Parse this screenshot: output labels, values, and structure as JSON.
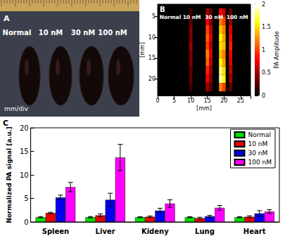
{
  "photo": {
    "title": "A",
    "annotations": [
      "Normal",
      "10 nM",
      "30 nM",
      "100 nM"
    ],
    "note": "mm/div"
  },
  "chart_data": [
    {
      "type": "heatmap",
      "title": "B",
      "annotations": [
        "Normal",
        "10 nM",
        "30 nM",
        "100 nM"
      ],
      "x_label": "[mm]",
      "y_label": "[mm]",
      "xlim": [
        0,
        28
      ],
      "xticks": [
        0,
        5,
        10,
        15,
        20,
        25
      ],
      "ylim": [
        2,
        24
      ],
      "yticks": [
        5,
        10,
        15,
        20
      ],
      "cells": [
        [
          10,
          4,
          0.2
        ],
        [
          10,
          6,
          0.3
        ],
        [
          10,
          8,
          0.4
        ],
        [
          10,
          10,
          0.4
        ],
        [
          10,
          12,
          0.5
        ],
        [
          10,
          14,
          0.4
        ],
        [
          10,
          16,
          0.4
        ],
        [
          10,
          18,
          0.3
        ],
        [
          10,
          20,
          0.3
        ],
        [
          10,
          22,
          0.2
        ],
        [
          15,
          4,
          0.5
        ],
        [
          15,
          6,
          0.8
        ],
        [
          15,
          8,
          1.0
        ],
        [
          15,
          10,
          1.1
        ],
        [
          15,
          12,
          1.0
        ],
        [
          15,
          14,
          1.2
        ],
        [
          15,
          16,
          1.1
        ],
        [
          15,
          18,
          0.9
        ],
        [
          15,
          20,
          0.8
        ],
        [
          15,
          22,
          0.5
        ],
        [
          16,
          4,
          0.3
        ],
        [
          16,
          6,
          0.4
        ],
        [
          16,
          8,
          0.6
        ],
        [
          16,
          10,
          0.7
        ],
        [
          16,
          12,
          0.6
        ],
        [
          16,
          14,
          0.7
        ],
        [
          16,
          16,
          0.6
        ],
        [
          16,
          18,
          0.5
        ],
        [
          16,
          20,
          0.4
        ],
        [
          16,
          22,
          0.3
        ],
        [
          19,
          4,
          0.8
        ],
        [
          19,
          6,
          1.2
        ],
        [
          19,
          8,
          1.4
        ],
        [
          19,
          10,
          1.6
        ],
        [
          19,
          12,
          1.5
        ],
        [
          19,
          14,
          1.4
        ],
        [
          19,
          16,
          1.6
        ],
        [
          19,
          18,
          1.8
        ],
        [
          19,
          20,
          1.9
        ],
        [
          19,
          22,
          1.2
        ],
        [
          20,
          4,
          0.6
        ],
        [
          20,
          6,
          1.0
        ],
        [
          20,
          8,
          1.2
        ],
        [
          20,
          10,
          1.3
        ],
        [
          20,
          12,
          1.4
        ],
        [
          20,
          14,
          1.2
        ],
        [
          20,
          16,
          1.3
        ],
        [
          20,
          18,
          1.5
        ],
        [
          20,
          20,
          1.6
        ],
        [
          20,
          22,
          1.0
        ],
        [
          22,
          4,
          0.3
        ],
        [
          22,
          6,
          0.5
        ],
        [
          22,
          8,
          0.7
        ],
        [
          22,
          10,
          0.8
        ],
        [
          22,
          12,
          0.9
        ],
        [
          22,
          14,
          0.8
        ],
        [
          22,
          16,
          0.7
        ],
        [
          22,
          18,
          0.6
        ],
        [
          22,
          20,
          0.5
        ],
        [
          22,
          22,
          0.3
        ]
      ],
      "colorbar": {
        "label": "PA Amplitude",
        "range": [
          0,
          2
        ],
        "ticks": [
          0,
          0.5,
          1,
          1.5,
          2
        ]
      }
    },
    {
      "type": "bar",
      "title": "C",
      "y_label": "Normalized PA signal [a.u.]",
      "categories": [
        "Spleen",
        "Liver",
        "Kideny",
        "Lung",
        "Heart"
      ],
      "series": [
        {
          "name": "Normal",
          "color": "#00e000",
          "values": [
            1,
            1,
            1,
            1,
            1
          ],
          "errors": [
            0.15,
            0.15,
            0.1,
            0.1,
            0.1
          ]
        },
        {
          "name": "10 nM",
          "color": "#ee0000",
          "values": [
            1.9,
            1.4,
            1.1,
            0.8,
            1.1
          ],
          "errors": [
            0.15,
            0.3,
            0.15,
            0.2,
            0.2
          ]
        },
        {
          "name": "30 nM",
          "color": "#0000ee",
          "values": [
            5.2,
            4.7,
            2.4,
            1.2,
            1.8
          ],
          "errors": [
            0.5,
            1.4,
            0.5,
            0.2,
            0.6
          ]
        },
        {
          "name": "100 nM",
          "color": "#ff00ff",
          "values": [
            7.4,
            13.7,
            3.9,
            3.0,
            2.2
          ],
          "errors": [
            1.0,
            2.8,
            0.8,
            0.5,
            0.4
          ]
        }
      ],
      "ylim": [
        0,
        20
      ],
      "yticks": [
        0,
        5,
        10,
        15,
        20
      ],
      "grid": false,
      "legend": "upper right"
    }
  ]
}
